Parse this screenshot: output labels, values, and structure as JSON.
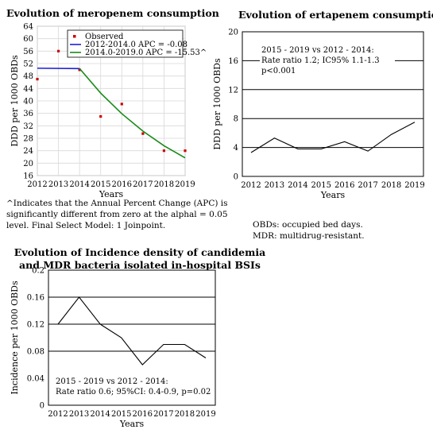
{
  "chart_data": [
    {
      "type": "scatter",
      "title": "Evolution of meropenem consumption",
      "xlabel": "Years",
      "ylabel": "DDD per 1000 OBDs",
      "x": [
        2012,
        2013,
        2014,
        2015,
        2016,
        2017,
        2018,
        2019
      ],
      "ylim": [
        16,
        64
      ],
      "yticks": [
        16,
        20,
        24,
        28,
        32,
        36,
        40,
        44,
        48,
        52,
        56,
        60,
        64
      ],
      "series": [
        {
          "name": "Observed",
          "color": "#cc0000",
          "kind": "points",
          "x": [
            2012,
            2013,
            2014,
            2015,
            2016,
            2017,
            2018,
            2019
          ],
          "values": [
            47,
            56,
            50,
            35,
            39,
            29.5,
            24,
            24
          ]
        },
        {
          "name": "2012-2014.0 APC = -0.08",
          "color": "#1f1fd6",
          "kind": "line",
          "x": [
            2012,
            2014
          ],
          "values": [
            50.5,
            50.4
          ]
        },
        {
          "name": "2014.0-2019.0 APC = -15.53^",
          "color": "#1a8a1a",
          "kind": "line",
          "x": [
            2014,
            2015,
            2016,
            2017,
            2018,
            2019
          ],
          "values": [
            50.4,
            42.5,
            35.9,
            30.3,
            25.6,
            21.7
          ]
        }
      ],
      "legend_position": "top-right",
      "footnote": "^Indicates that the Annual Percent Change (APC) is significantly different from zero at the alphal = 0.05 level. Final Select Model: 1 Joinpoint."
    },
    {
      "type": "line",
      "title": "Evolution of ertapenem consumption",
      "xlabel": "Years",
      "ylabel": "DDD per 1000 OBDs",
      "x": [
        2012,
        2013,
        2014,
        2015,
        2016,
        2017,
        2018,
        2019
      ],
      "ylim": [
        0,
        20
      ],
      "yticks": [
        0,
        4,
        8,
        12,
        16,
        20
      ],
      "grid_values": [
        4,
        8,
        12,
        16
      ],
      "series": [
        {
          "color": "#000000",
          "values": [
            3.3,
            5.3,
            3.8,
            3.8,
            4.8,
            3.5,
            5.8,
            7.5
          ]
        }
      ],
      "annotation": [
        "2015 - 2019 vs 2012 - 2014:",
        "Rate ratio 1.2; IC95% 1.1-1.3",
        "p<0.001"
      ],
      "notes": [
        "OBDs: occupied bed days.",
        "MDR: multidrug-resistant."
      ]
    },
    {
      "type": "line",
      "title": [
        "Evolution of Incidence density of candidemia",
        "and MDR bacteria isolated in-hospital BSIs"
      ],
      "xlabel": "Years",
      "ylabel": "Incidence per 1000 OBDs",
      "x": [
        2012,
        2013,
        2014,
        2015,
        2016,
        2017,
        2018,
        2019
      ],
      "ylim": [
        0,
        0.2
      ],
      "yticks": [
        "0",
        "0.04",
        "0.08",
        "0.12",
        "0.16",
        "0.2"
      ],
      "grid_values": [
        0.08,
        0.12,
        0.16
      ],
      "series": [
        {
          "color": "#000000",
          "values": [
            0.12,
            0.16,
            0.12,
            0.1,
            0.06,
            0.09,
            0.09,
            0.07
          ]
        }
      ],
      "annotation": [
        "2015 - 2019 vs 2012 - 2014:",
        "Rate ratio 0.6; 95%CI: 0.4-0.9, p=0.02"
      ]
    }
  ]
}
